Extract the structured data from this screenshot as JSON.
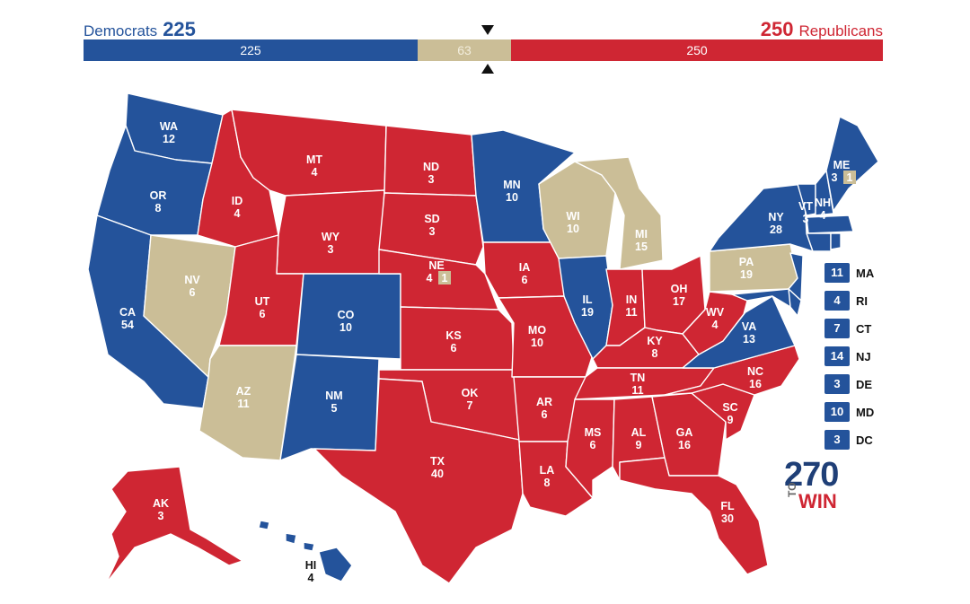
{
  "header": {
    "dem_label": "Democrats",
    "dem_total": "225",
    "rep_total": "250",
    "rep_label": "Republicans",
    "bar_dem": "225",
    "bar_tossup": "63",
    "bar_rep": "250"
  },
  "colors": {
    "democrat": "#24539b",
    "republican": "#cf2633",
    "tossup": "#cbbe97"
  },
  "states": {
    "WA": {
      "abbr": "WA",
      "ev": "12",
      "party": "dem"
    },
    "OR": {
      "abbr": "OR",
      "ev": "8",
      "party": "dem"
    },
    "CA": {
      "abbr": "CA",
      "ev": "54",
      "party": "dem"
    },
    "NV": {
      "abbr": "NV",
      "ev": "6",
      "party": "tossup"
    },
    "ID": {
      "abbr": "ID",
      "ev": "4",
      "party": "rep"
    },
    "MT": {
      "abbr": "MT",
      "ev": "4",
      "party": "rep"
    },
    "WY": {
      "abbr": "WY",
      "ev": "3",
      "party": "rep"
    },
    "UT": {
      "abbr": "UT",
      "ev": "6",
      "party": "rep"
    },
    "AZ": {
      "abbr": "AZ",
      "ev": "11",
      "party": "tossup"
    },
    "CO": {
      "abbr": "CO",
      "ev": "10",
      "party": "dem"
    },
    "NM": {
      "abbr": "NM",
      "ev": "5",
      "party": "dem"
    },
    "ND": {
      "abbr": "ND",
      "ev": "3",
      "party": "rep"
    },
    "SD": {
      "abbr": "SD",
      "ev": "3",
      "party": "rep"
    },
    "NE": {
      "abbr": "NE",
      "ev": "4",
      "party": "rep",
      "district": "1"
    },
    "KS": {
      "abbr": "KS",
      "ev": "6",
      "party": "rep"
    },
    "OK": {
      "abbr": "OK",
      "ev": "7",
      "party": "rep"
    },
    "TX": {
      "abbr": "TX",
      "ev": "40",
      "party": "rep"
    },
    "MN": {
      "abbr": "MN",
      "ev": "10",
      "party": "dem"
    },
    "IA": {
      "abbr": "IA",
      "ev": "6",
      "party": "rep"
    },
    "MO": {
      "abbr": "MO",
      "ev": "10",
      "party": "rep"
    },
    "AR": {
      "abbr": "AR",
      "ev": "6",
      "party": "rep"
    },
    "LA": {
      "abbr": "LA",
      "ev": "8",
      "party": "rep"
    },
    "WI": {
      "abbr": "WI",
      "ev": "10",
      "party": "tossup"
    },
    "IL": {
      "abbr": "IL",
      "ev": "19",
      "party": "dem"
    },
    "MI": {
      "abbr": "MI",
      "ev": "15",
      "party": "tossup"
    },
    "IN": {
      "abbr": "IN",
      "ev": "11",
      "party": "rep"
    },
    "OH": {
      "abbr": "OH",
      "ev": "17",
      "party": "rep"
    },
    "KY": {
      "abbr": "KY",
      "ev": "8",
      "party": "rep"
    },
    "TN": {
      "abbr": "TN",
      "ev": "11",
      "party": "rep"
    },
    "MS": {
      "abbr": "MS",
      "ev": "6",
      "party": "rep"
    },
    "AL": {
      "abbr": "AL",
      "ev": "9",
      "party": "rep"
    },
    "GA": {
      "abbr": "GA",
      "ev": "16",
      "party": "rep"
    },
    "FL": {
      "abbr": "FL",
      "ev": "30",
      "party": "rep"
    },
    "SC": {
      "abbr": "SC",
      "ev": "9",
      "party": "rep"
    },
    "NC": {
      "abbr": "NC",
      "ev": "16",
      "party": "rep"
    },
    "VA": {
      "abbr": "VA",
      "ev": "13",
      "party": "dem"
    },
    "WV": {
      "abbr": "WV",
      "ev": "4",
      "party": "rep"
    },
    "PA": {
      "abbr": "PA",
      "ev": "19",
      "party": "tossup"
    },
    "NY": {
      "abbr": "NY",
      "ev": "28",
      "party": "dem"
    },
    "VT": {
      "abbr": "VT",
      "ev": "3",
      "party": "dem"
    },
    "NH": {
      "abbr": "NH",
      "ev": "4",
      "party": "dem"
    },
    "ME": {
      "abbr": "ME",
      "ev": "3",
      "party": "dem",
      "district": "1"
    },
    "AK": {
      "abbr": "AK",
      "ev": "3",
      "party": "rep"
    },
    "HI": {
      "abbr": "HI",
      "ev": "4",
      "party": "dem"
    }
  },
  "small_states": [
    {
      "ev": "11",
      "abbr": "MA"
    },
    {
      "ev": "4",
      "abbr": "RI"
    },
    {
      "ev": "7",
      "abbr": "CT"
    },
    {
      "ev": "14",
      "abbr": "NJ"
    },
    {
      "ev": "3",
      "abbr": "DE"
    },
    {
      "ev": "10",
      "abbr": "MD"
    },
    {
      "ev": "3",
      "abbr": "DC"
    }
  ],
  "logo": {
    "num": "270",
    "to": "TO",
    "win": "WIN"
  }
}
